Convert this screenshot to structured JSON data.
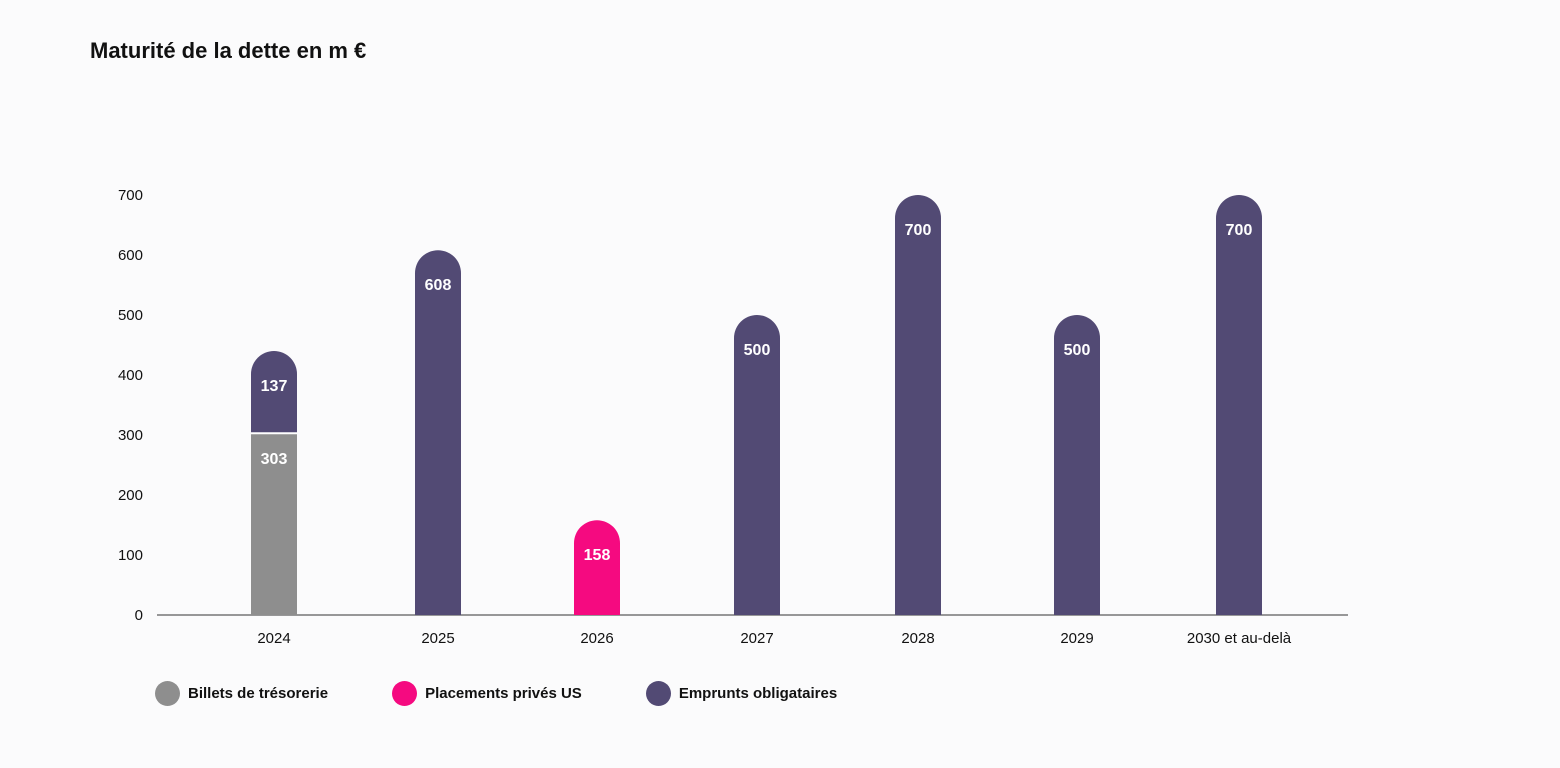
{
  "chart_data": {
    "type": "bar",
    "stacked": true,
    "title": "Maturité de la dette en m €",
    "xlabel": "",
    "ylabel": "",
    "ylim": [
      0,
      700
    ],
    "yticks": [
      0,
      100,
      200,
      300,
      400,
      500,
      600,
      700
    ],
    "categories": [
      "2024",
      "2025",
      "2026",
      "2027",
      "2028",
      "2029",
      "2030 et au-delà"
    ],
    "series": [
      {
        "name": "Billets de trésorerie",
        "color": "#8e8e8e",
        "values": [
          303,
          0,
          0,
          0,
          0,
          0,
          0
        ]
      },
      {
        "name": "Placements privés US",
        "color": "#f50a80",
        "values": [
          0,
          0,
          158,
          0,
          0,
          0,
          0
        ]
      },
      {
        "name": "Emprunts obligataires",
        "color": "#524a74",
        "values": [
          137,
          608,
          0,
          500,
          700,
          500,
          700
        ]
      }
    ],
    "legend_position": "bottom-left"
  }
}
